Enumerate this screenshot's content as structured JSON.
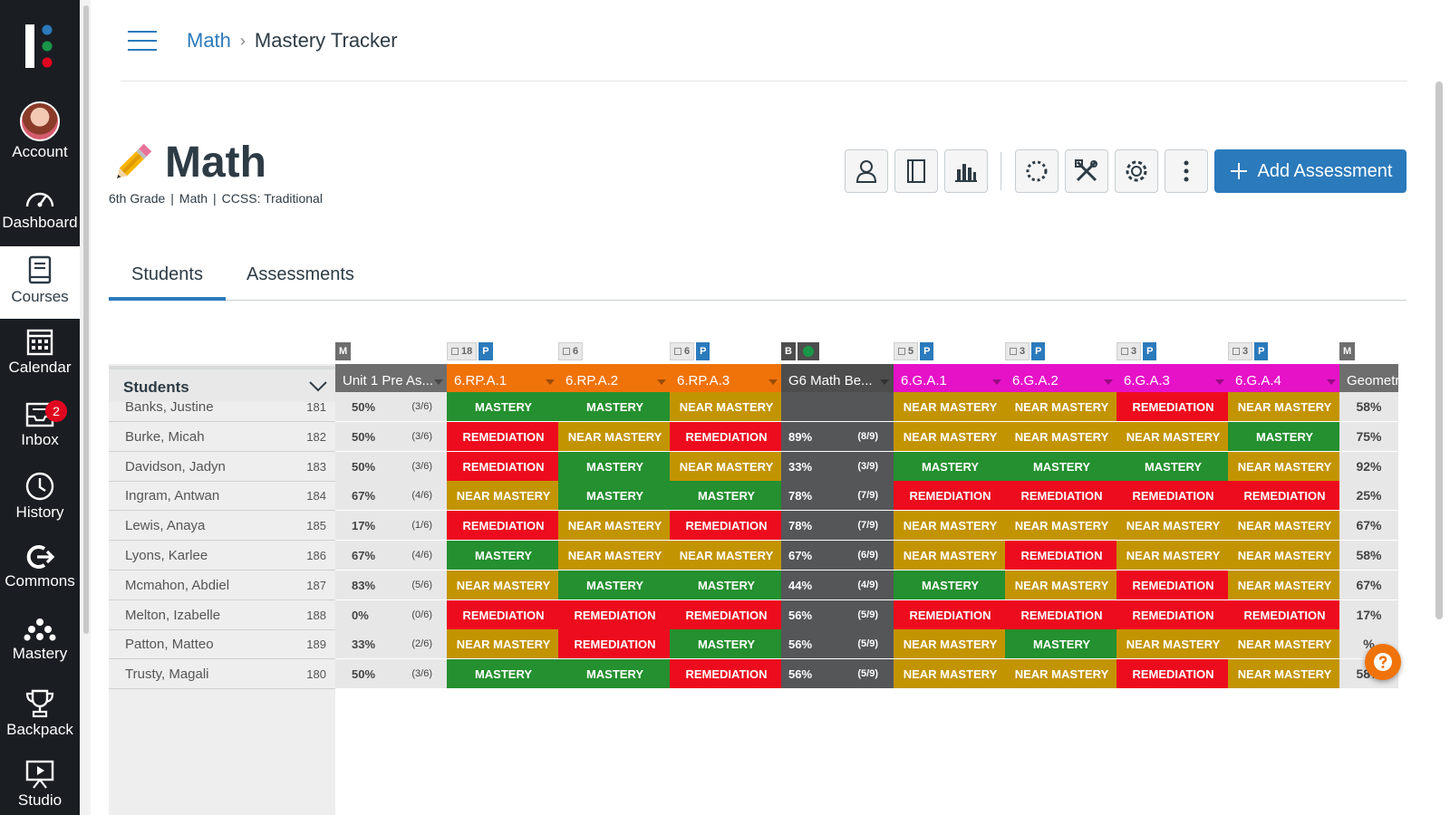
{
  "globalnav": {
    "items": [
      {
        "label": "Account",
        "icon": "avatar"
      },
      {
        "label": "Dashboard",
        "icon": "dashboard-icon"
      },
      {
        "label": "Courses",
        "icon": "courses-icon"
      },
      {
        "label": "Calendar",
        "icon": "calendar-icon"
      },
      {
        "label": "Inbox",
        "icon": "inbox-icon",
        "badge": "2"
      },
      {
        "label": "History",
        "icon": "history-icon"
      },
      {
        "label": "Commons",
        "icon": "commons-icon"
      },
      {
        "label": "Mastery",
        "icon": "mastery-icon"
      },
      {
        "label": "Backpack",
        "icon": "trophy-icon"
      },
      {
        "label": "Studio",
        "icon": "studio-icon"
      }
    ],
    "active": "Courses"
  },
  "header": {
    "breadcrumb": [
      "Math",
      "Mastery Tracker"
    ]
  },
  "course": {
    "title": "Math",
    "meta": [
      "6th Grade",
      "Math",
      "CCSS: Traditional"
    ]
  },
  "toolbar": {
    "add_label": "Add Assessment"
  },
  "tabs": [
    "Students",
    "Assessments"
  ],
  "grid": {
    "students_header": "Students",
    "columns": [
      {
        "label": "Unit 1 Pre As...",
        "color": "gray",
        "tags": [
          {
            "type": "M",
            "text": "M"
          }
        ]
      },
      {
        "label": "6.RP.A.1",
        "color": "orange",
        "tags": [
          {
            "type": "count",
            "text": "18"
          },
          {
            "type": "P",
            "text": "P"
          }
        ]
      },
      {
        "label": "6.RP.A.2",
        "color": "orange",
        "tags": [
          {
            "type": "count",
            "text": "6"
          }
        ]
      },
      {
        "label": "6.RP.A.3",
        "color": "orange",
        "tags": [
          {
            "type": "count",
            "text": "6"
          },
          {
            "type": "P",
            "text": "P"
          }
        ]
      },
      {
        "label": "G6 Math Be...",
        "color": "dark",
        "tags": [
          {
            "type": "B",
            "text": "B"
          },
          {
            "type": "dot",
            "text": ""
          }
        ]
      },
      {
        "label": "6.G.A.1",
        "color": "magenta",
        "tags": [
          {
            "type": "count",
            "text": "5"
          },
          {
            "type": "P",
            "text": "P"
          }
        ]
      },
      {
        "label": "6.G.A.2",
        "color": "magenta",
        "tags": [
          {
            "type": "count",
            "text": "3"
          },
          {
            "type": "P",
            "text": "P"
          }
        ]
      },
      {
        "label": "6.G.A.3",
        "color": "magenta",
        "tags": [
          {
            "type": "count",
            "text": "3"
          },
          {
            "type": "P",
            "text": "P"
          }
        ]
      },
      {
        "label": "6.G.A.4",
        "color": "magenta",
        "tags": [
          {
            "type": "count",
            "text": "3"
          },
          {
            "type": "P",
            "text": "P"
          }
        ]
      },
      {
        "label": "Geometr",
        "color": "gray",
        "tags": [
          {
            "type": "M",
            "text": "M"
          }
        ]
      }
    ],
    "mastery_labels": {
      "M": "MASTERY",
      "N": "NEAR MASTERY",
      "R": "REMEDIATION"
    },
    "rows": [
      {
        "name": "Banks, Justine",
        "id": "181",
        "pre": "50%",
        "pre_frac": "(3/6)",
        "s": [
          "M",
          "M",
          "N"
        ],
        "bench": "",
        "bench_frac": "",
        "g": [
          "N",
          "N",
          "R",
          "N"
        ],
        "geo": "58%"
      },
      {
        "name": "Burke, Micah",
        "id": "182",
        "pre": "50%",
        "pre_frac": "(3/6)",
        "s": [
          "R",
          "N",
          "R"
        ],
        "bench": "89%",
        "bench_frac": "(8/9)",
        "g": [
          "N",
          "N",
          "N",
          "M"
        ],
        "geo": "75%"
      },
      {
        "name": "Davidson, Jadyn",
        "id": "183",
        "pre": "50%",
        "pre_frac": "(3/6)",
        "s": [
          "R",
          "M",
          "N"
        ],
        "bench": "33%",
        "bench_frac": "(3/9)",
        "g": [
          "M",
          "M",
          "M",
          "N"
        ],
        "geo": "92%"
      },
      {
        "name": "Ingram, Antwan",
        "id": "184",
        "pre": "67%",
        "pre_frac": "(4/6)",
        "s": [
          "N",
          "M",
          "M"
        ],
        "bench": "78%",
        "bench_frac": "(7/9)",
        "g": [
          "R",
          "R",
          "R",
          "R"
        ],
        "geo": "25%"
      },
      {
        "name": "Lewis, Anaya",
        "id": "185",
        "pre": "17%",
        "pre_frac": "(1/6)",
        "s": [
          "R",
          "N",
          "R"
        ],
        "bench": "78%",
        "bench_frac": "(7/9)",
        "g": [
          "N",
          "N",
          "N",
          "N"
        ],
        "geo": "67%"
      },
      {
        "name": "Lyons, Karlee",
        "id": "186",
        "pre": "67%",
        "pre_frac": "(4/6)",
        "s": [
          "M",
          "N",
          "N"
        ],
        "bench": "67%",
        "bench_frac": "(6/9)",
        "g": [
          "N",
          "R",
          "N",
          "N"
        ],
        "geo": "58%"
      },
      {
        "name": "Mcmahon, Abdiel",
        "id": "187",
        "pre": "83%",
        "pre_frac": "(5/6)",
        "s": [
          "N",
          "M",
          "M"
        ],
        "bench": "44%",
        "bench_frac": "(4/9)",
        "g": [
          "M",
          "N",
          "R",
          "N"
        ],
        "geo": "67%"
      },
      {
        "name": "Melton, Izabelle",
        "id": "188",
        "pre": "0%",
        "pre_frac": "(0/6)",
        "s": [
          "R",
          "R",
          "R"
        ],
        "bench": "56%",
        "bench_frac": "(5/9)",
        "g": [
          "R",
          "R",
          "R",
          "R"
        ],
        "geo": "17%"
      },
      {
        "name": "Patton, Matteo",
        "id": "189",
        "pre": "33%",
        "pre_frac": "(2/6)",
        "s": [
          "N",
          "R",
          "M"
        ],
        "bench": "56%",
        "bench_frac": "(5/9)",
        "g": [
          "N",
          "M",
          "N",
          "N"
        ],
        "geo": "%"
      },
      {
        "name": "Trusty, Magali",
        "id": "180",
        "pre": "50%",
        "pre_frac": "(3/6)",
        "s": [
          "M",
          "M",
          "R"
        ],
        "bench": "56%",
        "bench_frac": "(5/9)",
        "g": [
          "N",
          "N",
          "R",
          "N"
        ],
        "geo": "58%"
      }
    ]
  },
  "colors": {
    "accent": "#2b7abc",
    "mastery": "#24902f",
    "near_mastery": "#c39402",
    "remediation": "#ed0c1d"
  }
}
